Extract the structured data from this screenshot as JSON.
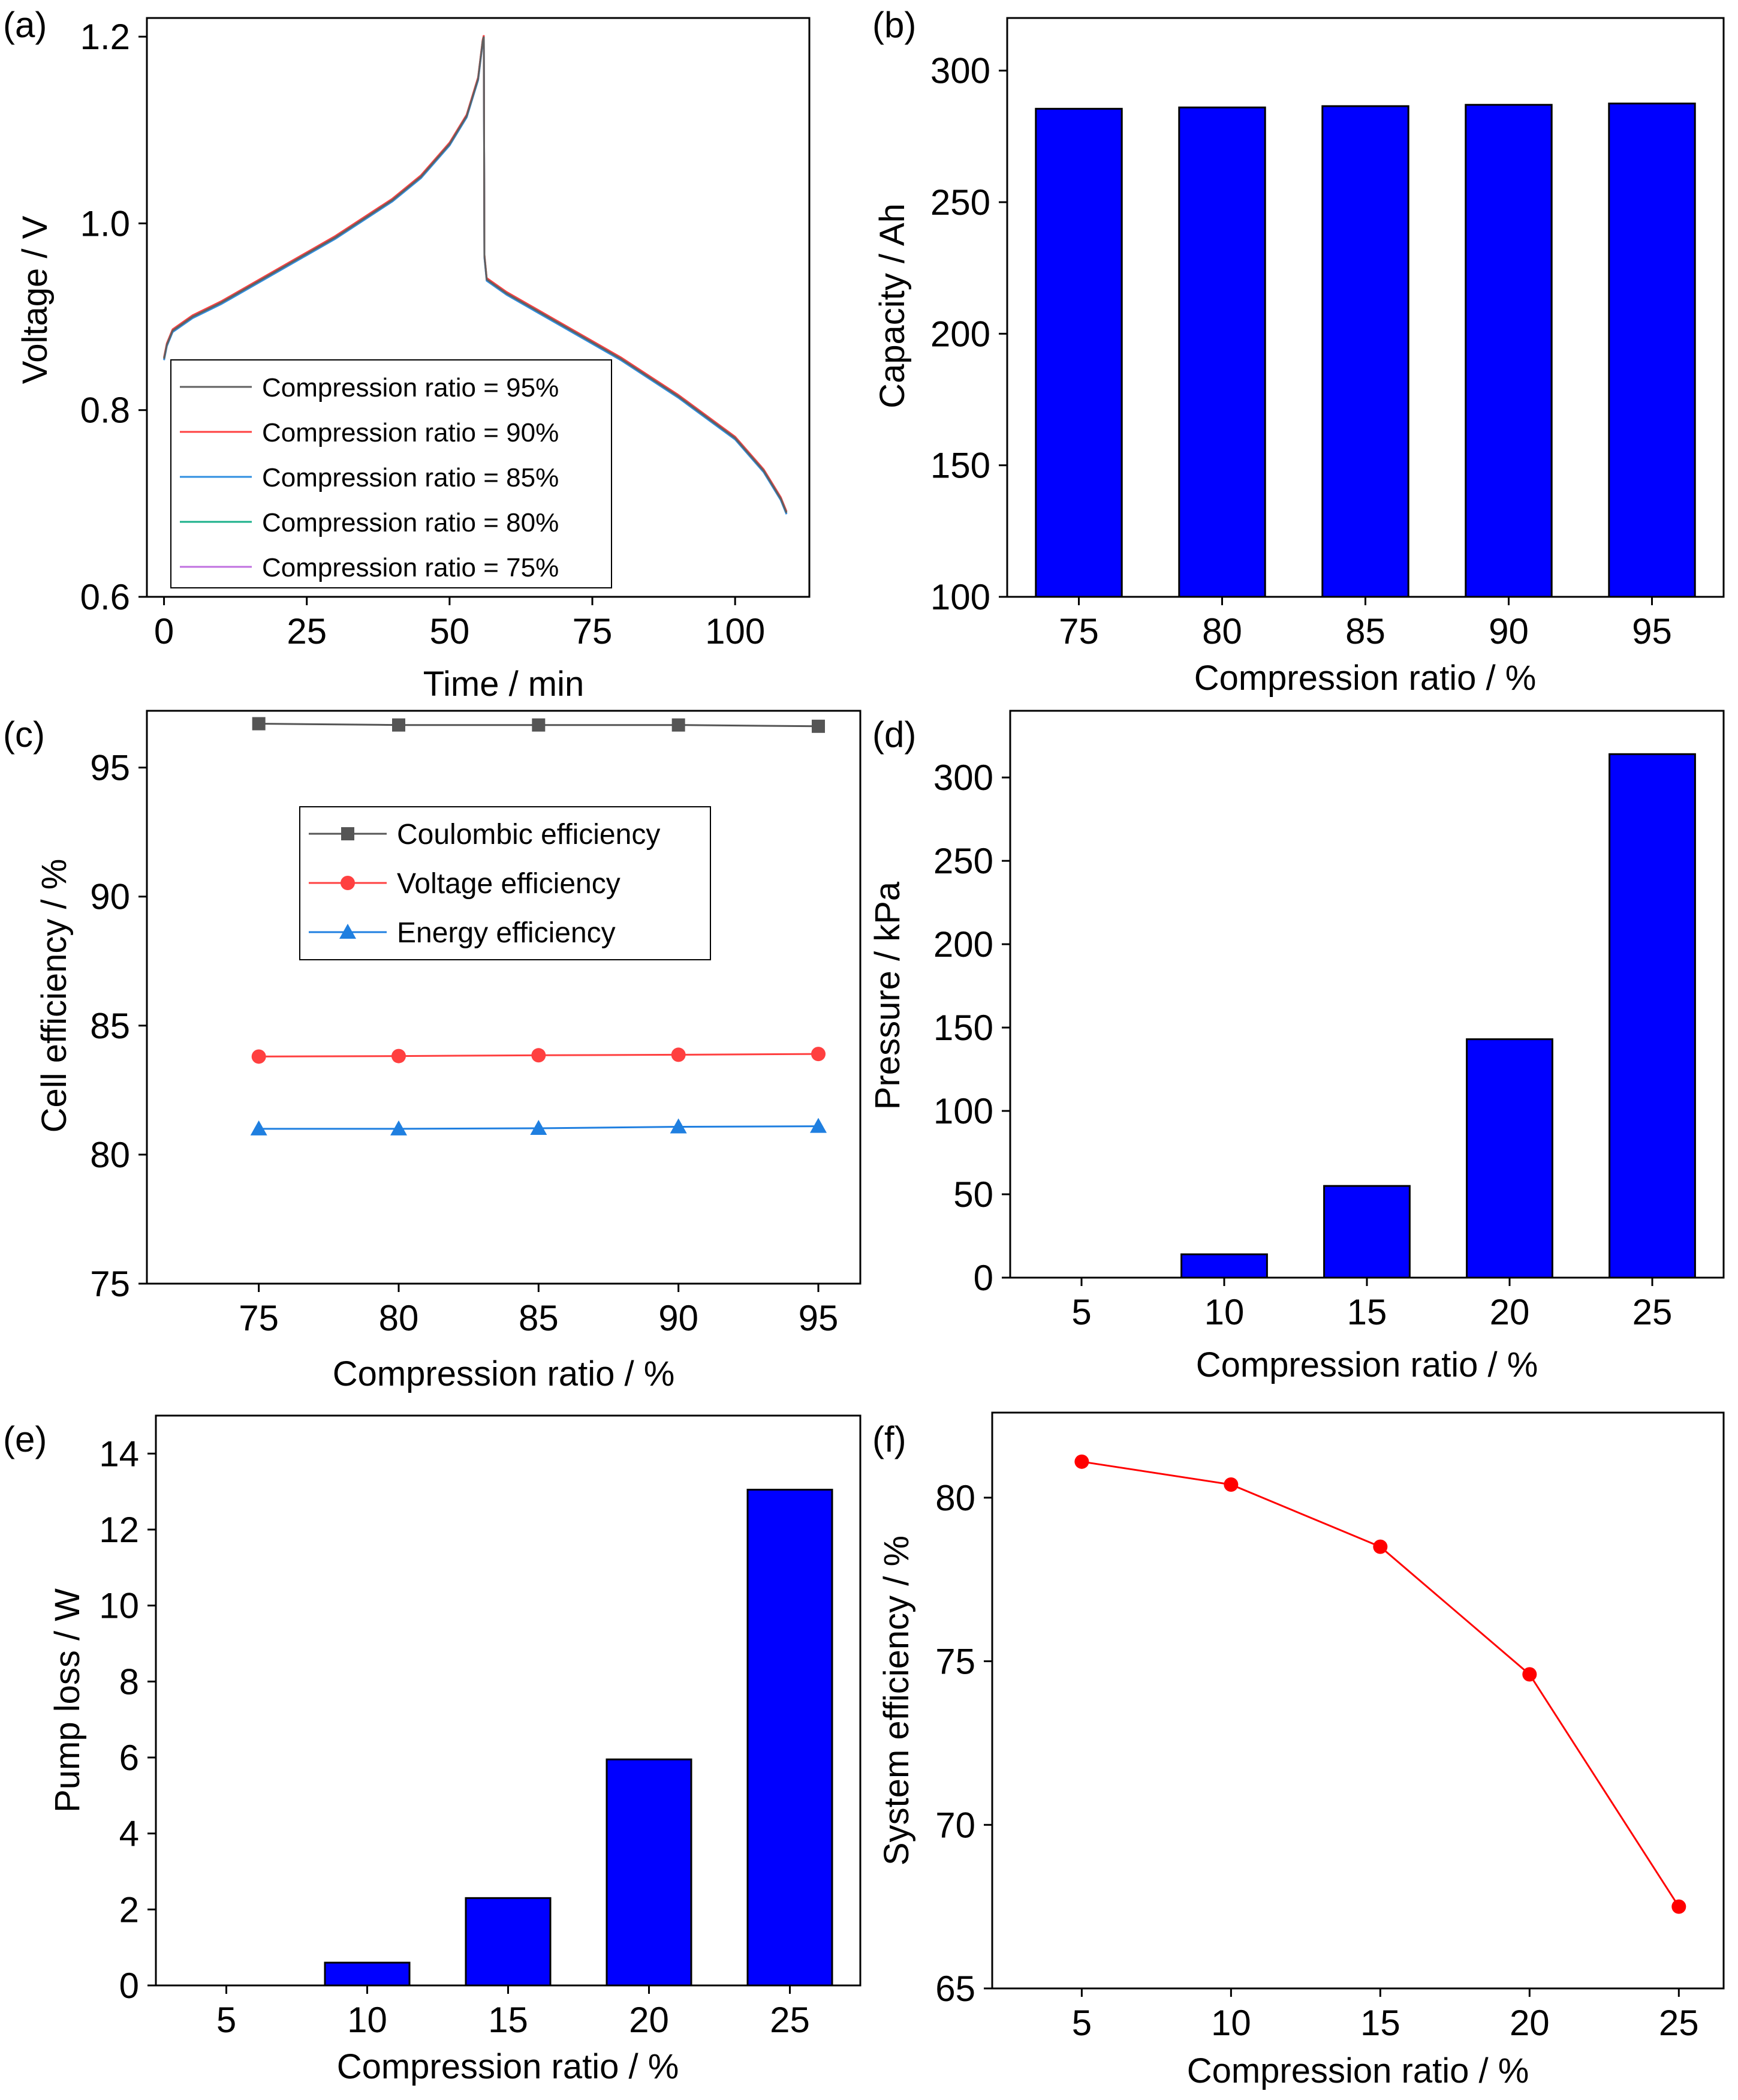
{
  "chart_data": [
    {
      "panel": "(a)",
      "type": "line",
      "xlabel": "Time / min",
      "ylabel": "Voltage / V",
      "xlim": [
        -3,
        113
      ],
      "ylim": [
        0.6,
        1.22
      ],
      "xticks": [
        0,
        25,
        50,
        75,
        100
      ],
      "yticks": [
        0.6,
        0.8,
        1.0,
        1.2
      ],
      "ytick_labels": [
        "0.6",
        "0.8",
        "1.0",
        "1.2"
      ],
      "legend_position": "bottom-left",
      "curve_points": [
        [
          0,
          0.855
        ],
        [
          0.5,
          0.87
        ],
        [
          1.5,
          0.885
        ],
        [
          5,
          0.9
        ],
        [
          10,
          0.915
        ],
        [
          20,
          0.95
        ],
        [
          30,
          0.985
        ],
        [
          40,
          1.025
        ],
        [
          45,
          1.05
        ],
        [
          50,
          1.085
        ],
        [
          53,
          1.115
        ],
        [
          55,
          1.155
        ],
        [
          55.8,
          1.195
        ],
        [
          56,
          1.2
        ],
        [
          56.1,
          0.965
        ],
        [
          56.5,
          0.94
        ],
        [
          60,
          0.925
        ],
        [
          70,
          0.89
        ],
        [
          80,
          0.855
        ],
        [
          90,
          0.815
        ],
        [
          100,
          0.77
        ],
        [
          105,
          0.735
        ],
        [
          108,
          0.705
        ],
        [
          109,
          0.69
        ]
      ],
      "series": [
        {
          "name": "Compression ratio = 95%",
          "color": "#606060",
          "offset": 0
        },
        {
          "name": "Compression ratio = 90%",
          "color": "#ff4040",
          "offset": 0.0015
        },
        {
          "name": "Compression ratio = 85%",
          "color": "#2e8ee0",
          "offset": -0.0015
        },
        {
          "name": "Compression ratio = 80%",
          "color": "#1ab08a",
          "offset": 0.001
        },
        {
          "name": "Compression ratio = 75%",
          "color": "#c070e0",
          "offset": -0.001
        }
      ]
    },
    {
      "panel": "(b)",
      "type": "bar",
      "xlabel": "Compression ratio / %",
      "ylabel": "Capacity / Ah",
      "categories": [
        "75",
        "80",
        "85",
        "90",
        "95"
      ],
      "values": [
        285.5,
        286,
        286.5,
        287,
        287.5
      ],
      "ylim": [
        100,
        320
      ],
      "yticks": [
        100,
        150,
        200,
        250,
        300
      ]
    },
    {
      "panel": "(c)",
      "type": "line",
      "xlabel": "Compression ratio / %",
      "ylabel": "Cell efficiency / %",
      "x": [
        75,
        80,
        85,
        90,
        95
      ],
      "xlim": [
        71,
        96.5
      ],
      "ylim": [
        75,
        97.2
      ],
      "xticks": [
        75,
        80,
        85,
        90,
        95
      ],
      "yticks": [
        75,
        80,
        85,
        90,
        95
      ],
      "legend_position": "upper-center",
      "series": [
        {
          "name": "Coulombic efficiency",
          "color": "#555555",
          "marker": "square",
          "values": [
            96.7,
            96.65,
            96.65,
            96.65,
            96.6
          ]
        },
        {
          "name": "Voltage efficiency",
          "color": "#ff4040",
          "marker": "circle",
          "values": [
            83.8,
            83.82,
            83.85,
            83.87,
            83.9
          ]
        },
        {
          "name": "Energy efficiency",
          "color": "#1f7fe0",
          "marker": "triangle",
          "values": [
            81.0,
            81.0,
            81.02,
            81.08,
            81.1
          ]
        }
      ]
    },
    {
      "panel": "(d)",
      "type": "bar",
      "xlabel": "Compression ratio / %",
      "ylabel": "Pressure / kPa",
      "categories": [
        "5",
        "10",
        "15",
        "20",
        "25"
      ],
      "values": [
        0,
        14,
        55,
        143,
        314
      ],
      "ylim": [
        0,
        340
      ],
      "yticks": [
        0,
        50,
        100,
        150,
        200,
        250,
        300
      ]
    },
    {
      "panel": "(e)",
      "type": "bar",
      "xlabel": "Compression ratio / %",
      "ylabel": "Pump loss / W",
      "categories": [
        "5",
        "10",
        "15",
        "20",
        "25"
      ],
      "values": [
        0,
        0.6,
        2.3,
        5.95,
        13.05
      ],
      "ylim": [
        0,
        15
      ],
      "yticks": [
        0,
        2,
        4,
        6,
        8,
        10,
        12,
        14
      ]
    },
    {
      "panel": "(f)",
      "type": "line",
      "xlabel": "Compression ratio / %",
      "ylabel": "System efficiency / %",
      "x": [
        5,
        10,
        15,
        20,
        25
      ],
      "xlim": [
        2,
        26.5
      ],
      "ylim": [
        65,
        82.6
      ],
      "xticks": [
        5,
        10,
        15,
        20,
        25
      ],
      "yticks": [
        65,
        70,
        75,
        80
      ],
      "series": [
        {
          "name": "System efficiency",
          "color": "#ff0000",
          "marker": "circle",
          "values": [
            81.1,
            80.4,
            78.5,
            74.6,
            67.5
          ]
        }
      ]
    }
  ]
}
